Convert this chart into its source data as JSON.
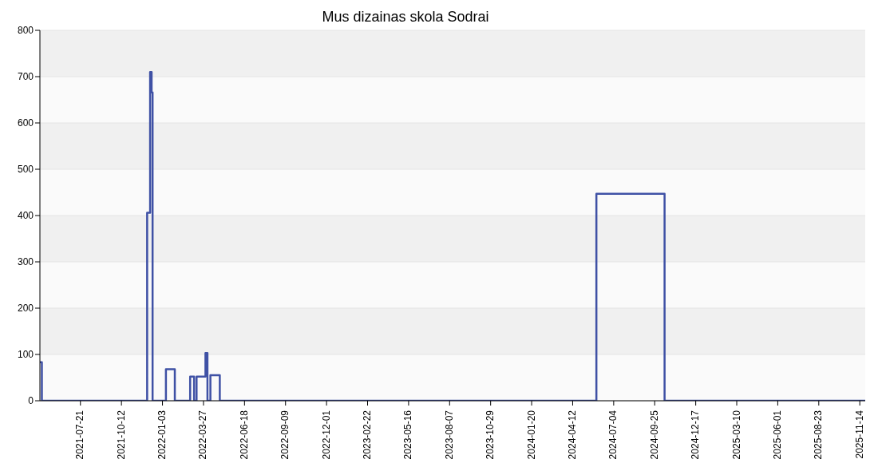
{
  "chart_data": {
    "type": "step",
    "title": "Mus dizainas skola Sodrai",
    "x": [
      "2021-04-30",
      "2021-05-04",
      "2021-12-03",
      "2021-12-09",
      "2021-12-12",
      "2021-12-14",
      "2022-01-10",
      "2022-01-28",
      "2022-02-28",
      "2022-03-08",
      "2022-03-13",
      "2022-03-31",
      "2022-04-04",
      "2022-04-10",
      "2022-04-29",
      "2024-05-30",
      "2024-10-15",
      "2025-11-25"
    ],
    "values": [
      83,
      0,
      406,
      710,
      666,
      0,
      68,
      0,
      52,
      0,
      52,
      103,
      0,
      55,
      0,
      447,
      0,
      0
    ],
    "color": "#3f51a5",
    "marker": "none",
    "xlim": [
      "2021-04-30",
      "2025-11-25"
    ],
    "xticks": [
      "2021-07-21",
      "2021-10-12",
      "2022-01-03",
      "2022-03-27",
      "2022-06-18",
      "2022-09-09",
      "2022-12-01",
      "2023-02-22",
      "2023-05-16",
      "2023-08-07",
      "2023-10-29",
      "2024-01-20",
      "2024-04-12",
      "2024-07-04",
      "2024-09-25",
      "2024-12-17",
      "2025-03-10",
      "2025-06-01",
      "2025-08-23",
      "2025-11-14"
    ],
    "ylim": [
      0,
      800
    ],
    "yticks": [
      0,
      100,
      200,
      300,
      400,
      500,
      600,
      700,
      800
    ],
    "grid": "y"
  }
}
